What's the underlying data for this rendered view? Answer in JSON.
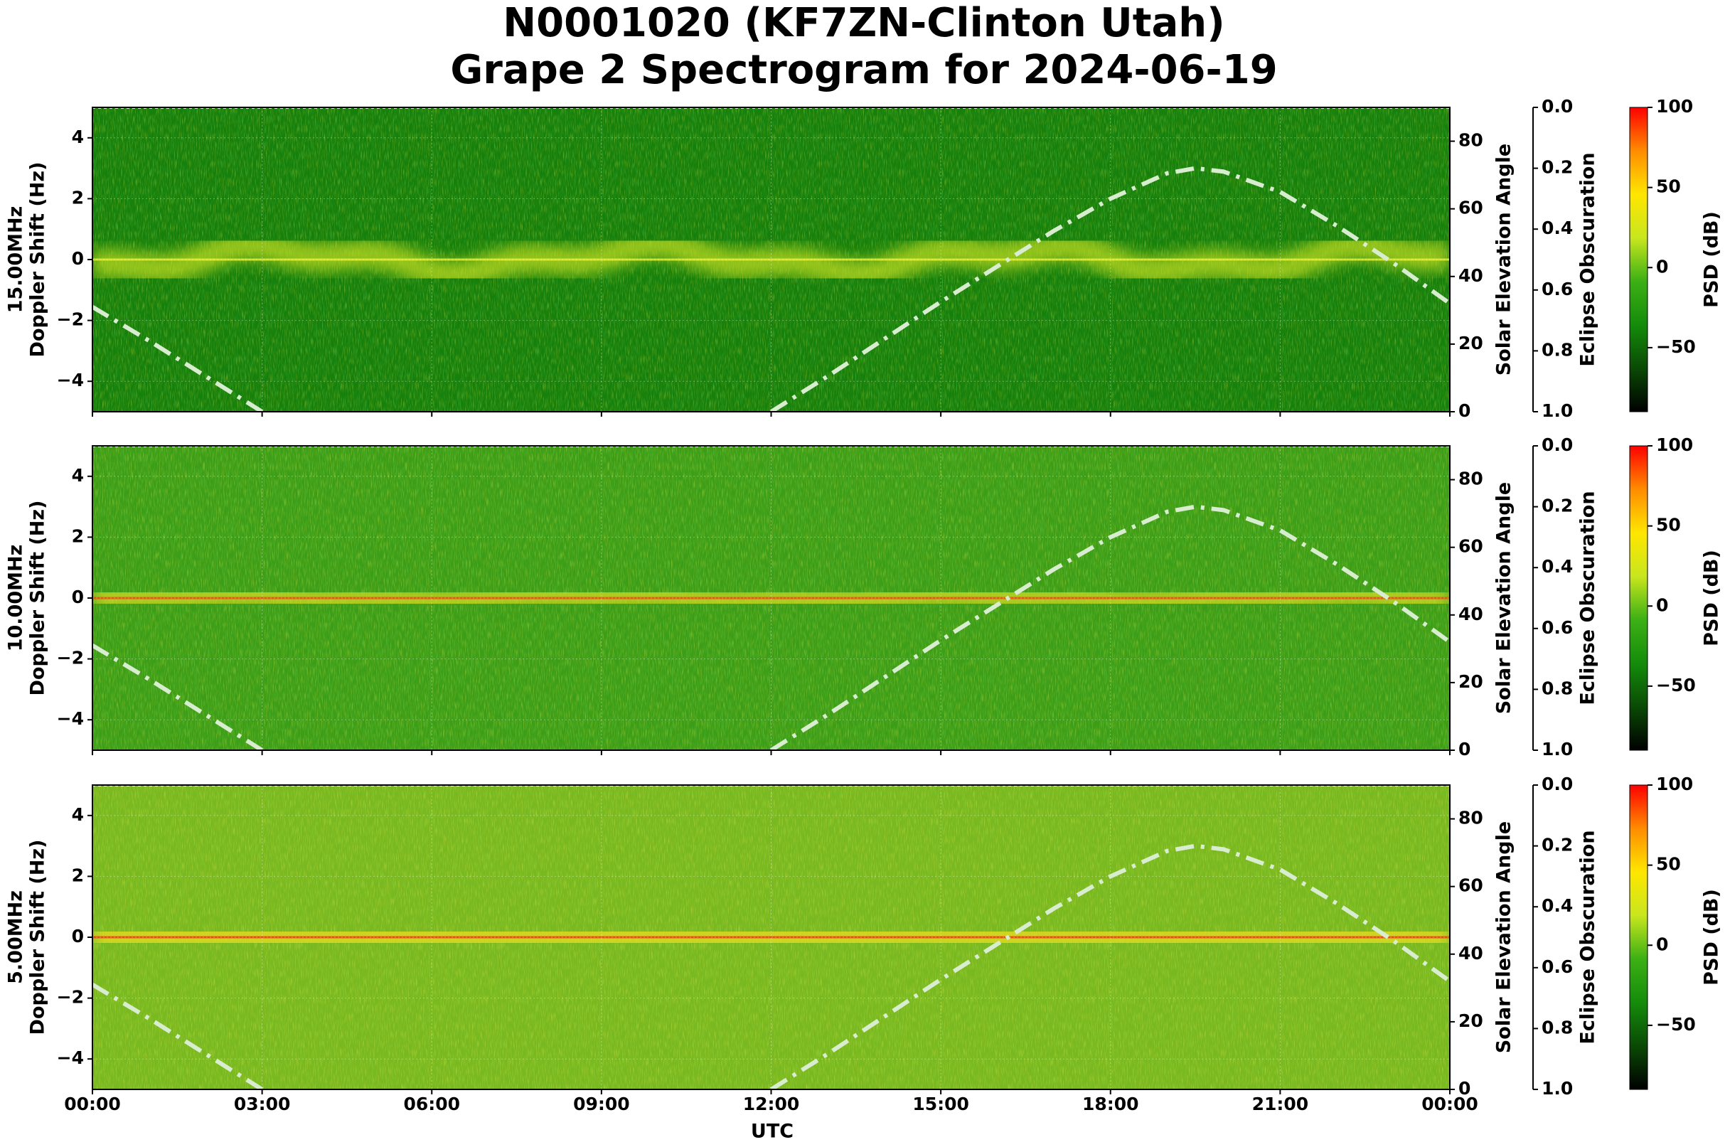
{
  "chart_data": {
    "type": "spectrogram",
    "title": [
      "N0001020 (KF7ZN-Clinton Utah)",
      "Grape 2 Spectrogram for 2024-06-19"
    ],
    "xlabel": "UTC",
    "xlim": [
      0,
      24
    ],
    "xticks": [
      {
        "value": 0,
        "label": "00:00"
      },
      {
        "value": 3,
        "label": "03:00"
      },
      {
        "value": 6,
        "label": "06:00"
      },
      {
        "value": 9,
        "label": "09:00"
      },
      {
        "value": 12,
        "label": "12:00"
      },
      {
        "value": 15,
        "label": "15:00"
      },
      {
        "value": 18,
        "label": "18:00"
      },
      {
        "value": 21,
        "label": "21:00"
      },
      {
        "value": 24,
        "label": "00:00"
      }
    ],
    "ylim": [
      -5,
      5
    ],
    "yticks": [
      {
        "value": -4,
        "label": "−4"
      },
      {
        "value": -2,
        "label": "−2"
      },
      0,
      2,
      4
    ],
    "grid": true,
    "panels": [
      {
        "ylabel": [
          "15.00MHz",
          "Doppler Shift (Hz)"
        ],
        "bg_color": "#15800c",
        "band_color": "#c8e020",
        "core_color": "#e8f030"
      },
      {
        "ylabel": [
          "10.00MHz",
          "Doppler Shift (Hz)"
        ],
        "bg_color": "#3c9e18",
        "band_color": "#e0e020",
        "core_color": "#f04010"
      },
      {
        "ylabel": [
          "5.00MHz",
          "Doppler Shift (Hz)"
        ],
        "bg_color": "#78b820",
        "band_color": "#f0e020",
        "core_color": "#f03010"
      }
    ],
    "solar": {
      "label": "Solar Elevation Angle",
      "color": "#d8ecd0",
      "ylim": [
        0,
        90
      ],
      "yticks": [
        0,
        20,
        40,
        60,
        80
      ],
      "x": [
        0,
        1,
        2,
        3,
        7.5,
        12,
        13,
        14,
        15,
        16,
        17,
        18,
        19,
        19.5,
        20,
        21,
        22,
        23,
        24
      ],
      "values": [
        31,
        21,
        10.5,
        0,
        null,
        0,
        10.5,
        21.5,
        32.5,
        43,
        53.5,
        63,
        70.5,
        72,
        71,
        65,
        55,
        44,
        32
      ]
    },
    "eclipse": {
      "label": "Eclipse Obscuration",
      "ylim": [
        1,
        0
      ],
      "yticks": [
        {
          "value": 0,
          "label": "0.0"
        },
        {
          "value": 0.2,
          "label": "0.2"
        },
        {
          "value": 0.4,
          "label": "0.4"
        },
        {
          "value": 0.6,
          "label": "0.6"
        },
        {
          "value": 0.8,
          "label": "0.8"
        },
        {
          "value": 1,
          "label": "1.0"
        }
      ]
    },
    "colorbar": {
      "label": "PSD (dB)",
      "clim": [
        -90,
        100
      ],
      "colormap": [
        "#000000",
        "#0a4a05",
        "#148c0a",
        "#3cb014",
        "#c8e61e",
        "#ffe600",
        "#ff8c00",
        "#ff0000"
      ],
      "ticks": [
        {
          "value": -50,
          "label": "−50"
        },
        0,
        50,
        100
      ]
    }
  }
}
